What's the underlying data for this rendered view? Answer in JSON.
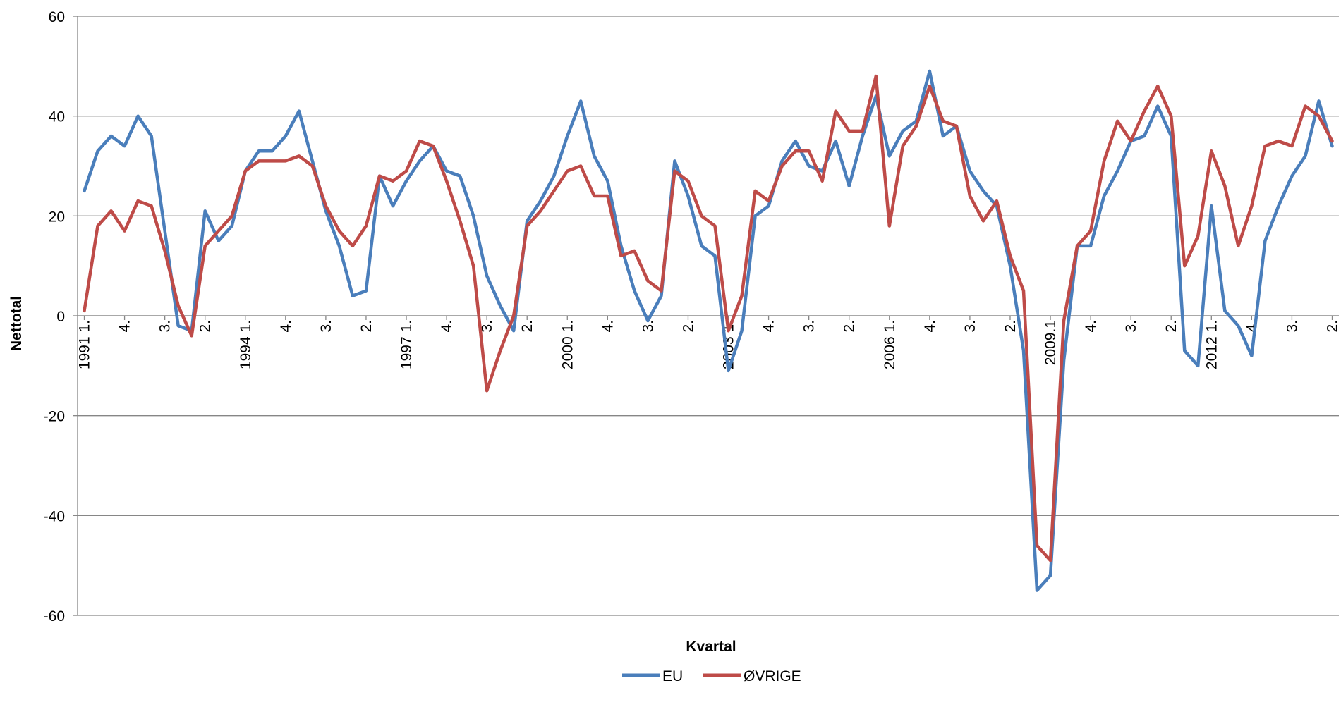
{
  "chart_data": {
    "type": "line",
    "title": "",
    "xlabel": "Kvartal",
    "ylabel": "Nettotal",
    "ylim": [
      -60,
      60
    ],
    "yticks": [
      -60,
      -40,
      -20,
      0,
      20,
      40,
      60
    ],
    "grid": "horizontal",
    "legend_position": "bottom",
    "x_tick_labels": [
      "1991 1.",
      "4.",
      "3.",
      "2.",
      "1994 1.",
      "4.",
      "3.",
      "2.",
      "1997 1.",
      "4.",
      "3.",
      "2.",
      "2000 1.",
      "4.",
      "3.",
      "2.",
      "2003 1.",
      "4.",
      "3.",
      "2.",
      "2006 1.",
      "4.",
      "3.",
      "2.",
      "2009.1",
      "4.",
      "3.",
      "2.",
      "2012 1.",
      "4.",
      "3.",
      "2."
    ],
    "series": [
      {
        "name": "EU",
        "color": "#4a7ebb",
        "values": [
          25,
          33,
          36,
          34,
          40,
          36,
          17,
          -2,
          -3,
          21,
          15,
          18,
          29,
          33,
          33,
          36,
          41,
          31,
          21,
          14,
          4,
          5,
          28,
          22,
          27,
          31,
          34,
          29,
          28,
          20,
          8,
          2,
          -3,
          19,
          23,
          28,
          36,
          43,
          32,
          27,
          14,
          5,
          -1,
          4,
          31,
          24,
          14,
          12,
          -11,
          -3,
          20,
          22,
          31,
          35,
          30,
          29,
          35,
          26,
          36,
          44,
          32,
          37,
          39,
          49,
          36,
          38,
          29,
          25,
          22,
          10,
          -7,
          -55,
          -52,
          -9,
          14,
          14,
          24,
          29,
          35,
          36,
          42,
          36,
          -7,
          -10,
          22,
          1,
          -2,
          -8,
          15,
          22,
          28,
          32,
          43,
          34
        ]
      },
      {
        "name": "ØVRIGE",
        "color": "#be4b48",
        "values": [
          1,
          18,
          21,
          17,
          23,
          22,
          13,
          2,
          -4,
          14,
          17,
          20,
          29,
          31,
          31,
          31,
          32,
          30,
          22,
          17,
          14,
          18,
          28,
          27,
          29,
          35,
          34,
          27,
          19,
          10,
          -15,
          -7,
          0,
          18,
          21,
          25,
          29,
          30,
          24,
          24,
          12,
          13,
          7,
          5,
          29,
          27,
          20,
          18,
          -3,
          4,
          25,
          23,
          30,
          33,
          33,
          27,
          41,
          37,
          37,
          48,
          18,
          34,
          38,
          46,
          39,
          38,
          24,
          19,
          23,
          12,
          5,
          -46,
          -49,
          -1,
          14,
          17,
          31,
          39,
          35,
          41,
          46,
          40,
          10,
          16,
          33,
          26,
          14,
          22,
          34,
          35,
          34,
          42,
          40,
          35
        ]
      }
    ]
  }
}
